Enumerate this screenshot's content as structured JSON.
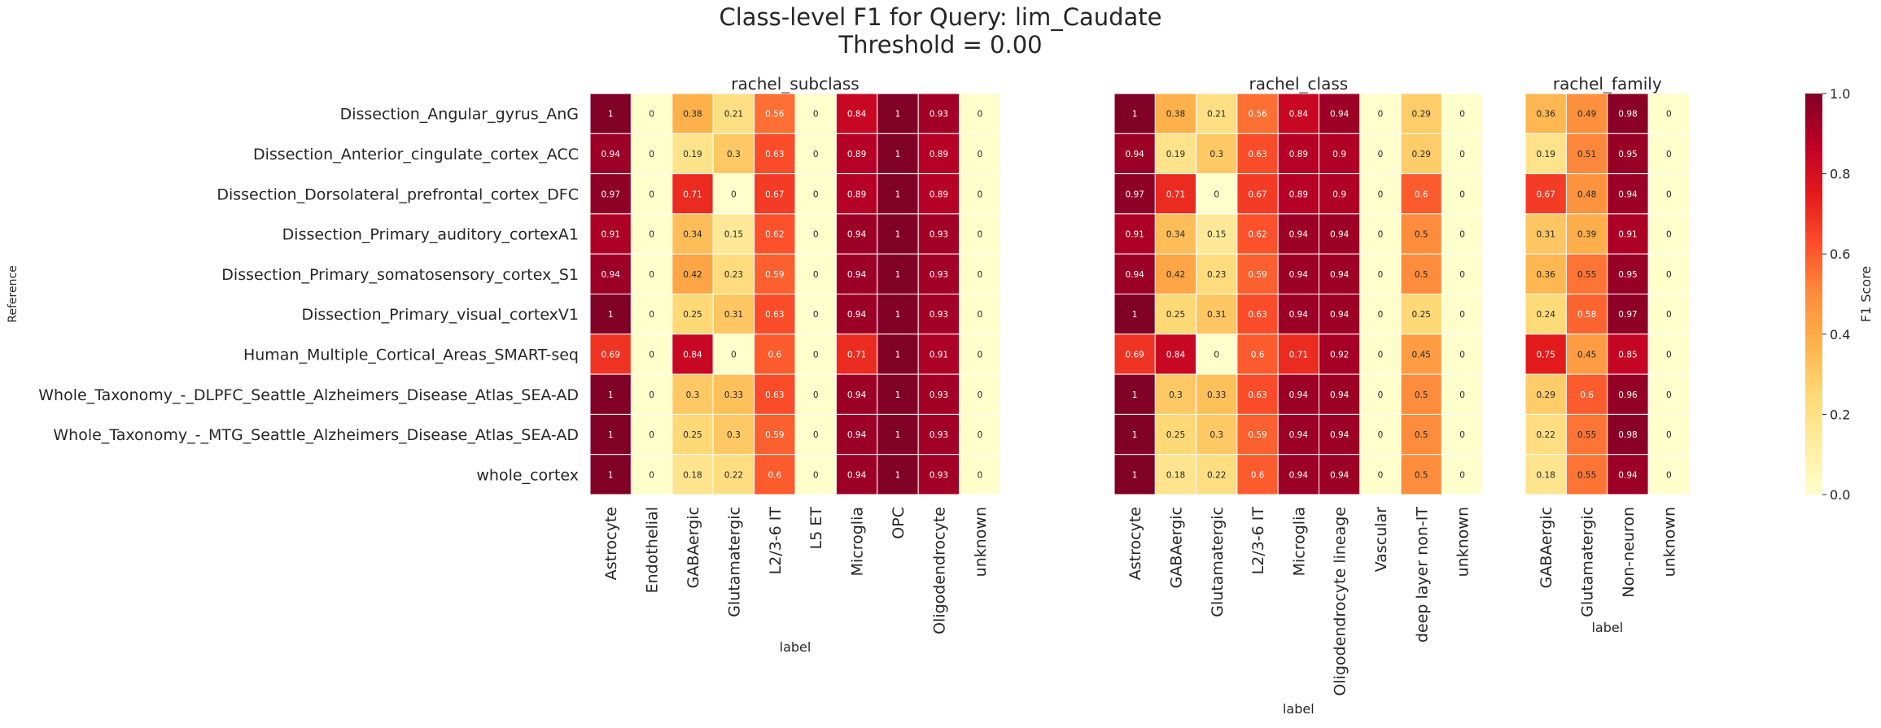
{
  "figure": {
    "title_line1": "Class-level F1 for Query: lim_Caudate",
    "title_line2": "Threshold = 0.00"
  },
  "colorbar": {
    "label": "F1 Score",
    "ticks": [
      "0.0",
      "0.2",
      "0.4",
      "0.6",
      "0.8",
      "1.0"
    ],
    "colormap": "YlOrRd",
    "colors": [
      "#ffffcc",
      "#ffeda0",
      "#fed976",
      "#feb24c",
      "#fd8d3c",
      "#fc4e2a",
      "#e31a1c",
      "#bd0026",
      "#800026"
    ]
  },
  "chart_data": [
    {
      "type": "heatmap",
      "title": "rachel_subclass",
      "xlabel": "label",
      "ylabel": "Reference",
      "zlim": [
        0,
        1
      ],
      "rows": [
        "Dissection_Angular_gyrus_AnG",
        "Dissection_Anterior_cingulate_cortex_ACC",
        "Dissection_Dorsolateral_prefrontal_cortex_DFC",
        "Dissection_Primary_auditory_cortexA1",
        "Dissection_Primary_somatosensory_cortex_S1",
        "Dissection_Primary_visual_cortexV1",
        "Human_Multiple_Cortical_Areas_SMART-seq",
        "Whole_Taxonomy_-_DLPFC_Seattle_Alzheimers_Disease_Atlas_SEA-AD",
        "Whole_Taxonomy_-_MTG_Seattle_Alzheimers_Disease_Atlas_SEA-AD",
        "whole_cortex"
      ],
      "columns": [
        "Astrocyte",
        "Endothelial",
        "GABAergic",
        "Glutamatergic",
        "L2/3-6 IT",
        "L5 ET",
        "Microglia",
        "OPC",
        "Oligodendrocyte",
        "unknown"
      ],
      "values": [
        [
          1,
          0,
          0.38,
          0.21,
          0.56,
          0,
          0.84,
          1,
          0.93,
          0
        ],
        [
          0.94,
          0,
          0.19,
          0.3,
          0.63,
          0,
          0.89,
          1,
          0.89,
          0
        ],
        [
          0.97,
          0,
          0.71,
          0,
          0.67,
          0,
          0.89,
          1,
          0.89,
          0
        ],
        [
          0.91,
          0,
          0.34,
          0.15,
          0.62,
          0,
          0.94,
          1,
          0.93,
          0
        ],
        [
          0.94,
          0,
          0.42,
          0.23,
          0.59,
          0,
          0.94,
          1,
          0.93,
          0
        ],
        [
          1,
          0,
          0.25,
          0.31,
          0.63,
          0,
          0.94,
          1,
          0.93,
          0
        ],
        [
          0.69,
          0,
          0.84,
          0,
          0.6,
          0,
          0.71,
          1,
          0.91,
          0
        ],
        [
          1,
          0,
          0.3,
          0.33,
          0.63,
          0,
          0.94,
          1,
          0.93,
          0
        ],
        [
          1,
          0,
          0.25,
          0.3,
          0.59,
          0,
          0.94,
          1,
          0.93,
          0
        ],
        [
          1,
          0,
          0.18,
          0.22,
          0.6,
          0,
          0.94,
          1,
          0.93,
          0
        ]
      ]
    },
    {
      "type": "heatmap",
      "title": "rachel_class",
      "xlabel": "label",
      "zlim": [
        0,
        1
      ],
      "columns": [
        "Astrocyte",
        "GABAergic",
        "Glutamatergic",
        "L2/3-6 IT",
        "Microglia",
        "Oligodendrocyte lineage",
        "Vascular",
        "deep layer non-IT",
        "unknown"
      ],
      "values": [
        [
          1,
          0.38,
          0.21,
          0.56,
          0.84,
          0.94,
          0,
          0.29,
          0
        ],
        [
          0.94,
          0.19,
          0.3,
          0.63,
          0.89,
          0.9,
          0,
          0.29,
          0
        ],
        [
          0.97,
          0.71,
          0,
          0.67,
          0.89,
          0.9,
          0,
          0.6,
          0
        ],
        [
          0.91,
          0.34,
          0.15,
          0.62,
          0.94,
          0.94,
          0,
          0.5,
          0
        ],
        [
          0.94,
          0.42,
          0.23,
          0.59,
          0.94,
          0.94,
          0,
          0.5,
          0
        ],
        [
          1,
          0.25,
          0.31,
          0.63,
          0.94,
          0.94,
          0,
          0.25,
          0
        ],
        [
          0.69,
          0.84,
          0,
          0.6,
          0.71,
          0.92,
          0,
          0.45,
          0
        ],
        [
          1,
          0.3,
          0.33,
          0.63,
          0.94,
          0.94,
          0,
          0.5,
          0
        ],
        [
          1,
          0.25,
          0.3,
          0.59,
          0.94,
          0.94,
          0,
          0.5,
          0
        ],
        [
          1,
          0.18,
          0.22,
          0.6,
          0.94,
          0.94,
          0,
          0.5,
          0
        ]
      ]
    },
    {
      "type": "heatmap",
      "title": "rachel_family",
      "xlabel": "label",
      "zlim": [
        0,
        1
      ],
      "columns": [
        "GABAergic",
        "Glutamatergic",
        "Non-neuron",
        "unknown"
      ],
      "values": [
        [
          0.36,
          0.49,
          0.98,
          0
        ],
        [
          0.19,
          0.51,
          0.95,
          0
        ],
        [
          0.67,
          0.48,
          0.94,
          0
        ],
        [
          0.31,
          0.39,
          0.91,
          0
        ],
        [
          0.36,
          0.55,
          0.95,
          0
        ],
        [
          0.24,
          0.58,
          0.97,
          0
        ],
        [
          0.75,
          0.45,
          0.85,
          0
        ],
        [
          0.29,
          0.6,
          0.96,
          0
        ],
        [
          0.22,
          0.55,
          0.98,
          0
        ],
        [
          0.18,
          0.55,
          0.94,
          0
        ]
      ]
    }
  ]
}
